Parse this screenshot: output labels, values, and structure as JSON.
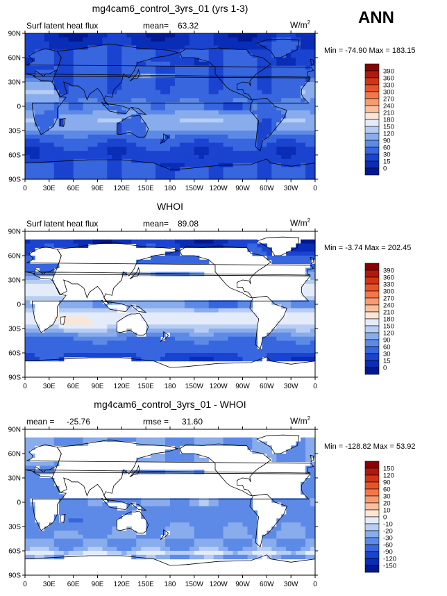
{
  "season": "ANN",
  "panels": [
    {
      "title": "mg4cam6_control_3yrs_01 (yrs 1-3)",
      "left_label": "Surf latent heat flux",
      "stat1_label": "mean=",
      "stat1_value": "63.32",
      "stat2_label": "",
      "stat2_value": "",
      "units": "W/m",
      "units_exp": "2",
      "min_label": "Min =",
      "min_value": "-74.90",
      "max_label": "Max =",
      "max_value": "183.15",
      "colorbar_levels": [
        "390",
        "360",
        "330",
        "300",
        "270",
        "240",
        "210",
        "180",
        "150",
        "120",
        "90",
        "60",
        "30",
        "15",
        "0"
      ],
      "colorbar_colors": [
        "#8b0000",
        "#b01a0c",
        "#d23416",
        "#e8542a",
        "#f2784a",
        "#f59c72",
        "#f7c19e",
        "#fbe6d4",
        "#e4ecfb",
        "#b7cdf3",
        "#88acec",
        "#5d8ae6",
        "#3766df",
        "#1a43d0",
        "#0a2db8",
        "#001890"
      ],
      "land": "filled"
    },
    {
      "title": "WHOI",
      "left_label": "Surf latent heat flux",
      "stat1_label": "mean=",
      "stat1_value": "89.08",
      "stat2_label": "",
      "stat2_value": "",
      "units": "W/m",
      "units_exp": "2",
      "min_label": "Min =",
      "min_value": "-3.74",
      "max_label": "Max =",
      "max_value": "202.45",
      "colorbar_levels": [
        "390",
        "360",
        "330",
        "300",
        "270",
        "240",
        "210",
        "180",
        "150",
        "120",
        "90",
        "60",
        "30",
        "15",
        "0"
      ],
      "colorbar_colors": [
        "#8b0000",
        "#b01a0c",
        "#d23416",
        "#e8542a",
        "#f2784a",
        "#f59c72",
        "#f7c19e",
        "#fbe6d4",
        "#e4ecfb",
        "#b7cdf3",
        "#88acec",
        "#5d8ae6",
        "#3766df",
        "#1a43d0",
        "#0a2db8",
        "#001890"
      ],
      "land": "white"
    },
    {
      "title": "mg4cam6_control_3yrs_01 - WHOI",
      "left_label": "",
      "stat1_label": "mean =",
      "stat1_value": "-25.76",
      "stat2_label": "rmse =",
      "stat2_value": "31.60",
      "units": "W/m",
      "units_exp": "2",
      "min_label": "Min =",
      "min_value": "-128.82",
      "max_label": "Max =",
      "max_value": "53.92",
      "colorbar_levels": [
        "150",
        "120",
        "90",
        "60",
        "30",
        "20",
        "10",
        "0",
        "-10",
        "-20",
        "-30",
        "-60",
        "-90",
        "-120",
        "-150"
      ],
      "colorbar_colors": [
        "#8b0000",
        "#b01a0c",
        "#d23416",
        "#e8542a",
        "#f2784a",
        "#f59c72",
        "#f7c19e",
        "#fbe6d4",
        "#e4ecfb",
        "#b7cdf3",
        "#88acec",
        "#5d8ae6",
        "#3766df",
        "#1a43d0",
        "#0a2db8",
        "#001890"
      ],
      "land": "white"
    }
  ],
  "lat_labels": [
    "90N",
    "60N",
    "30N",
    "0",
    "30S",
    "60S",
    "90S"
  ],
  "lon_labels": [
    "0",
    "30E",
    "60E",
    "90E",
    "120E",
    "150E",
    "180",
    "150W",
    "120W",
    "90W",
    "60W",
    "30W",
    "0"
  ]
}
